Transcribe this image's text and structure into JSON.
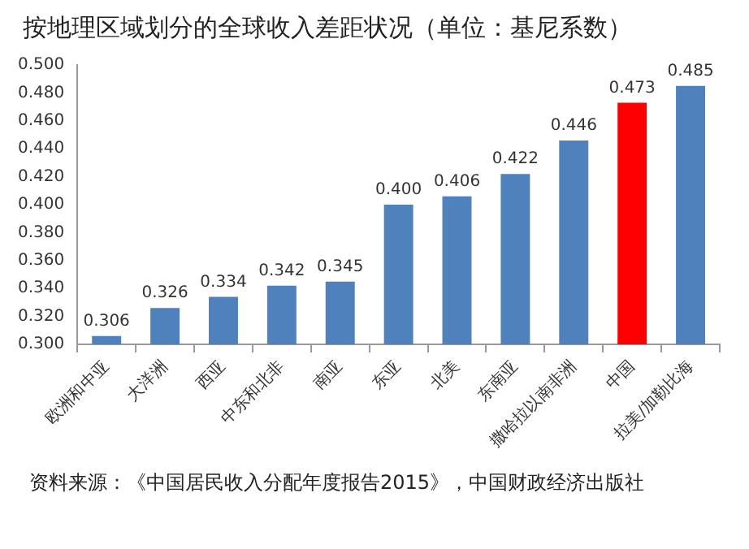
{
  "chart_data": {
    "type": "bar",
    "title": "按地理区域划分的全球收入差距状况（单位：基尼系数）",
    "categories": [
      "欧洲和中亚",
      "大洋洲",
      "西亚",
      "中东和北非",
      "南亚",
      "东亚",
      "北美",
      "东南亚",
      "撒哈拉以南非洲",
      "中国",
      "拉美/加勒比海"
    ],
    "values": [
      0.306,
      0.326,
      0.334,
      0.342,
      0.345,
      0.4,
      0.406,
      0.422,
      0.446,
      0.473,
      0.485
    ],
    "colors": [
      "#4f81bd",
      "#4f81bd",
      "#4f81bd",
      "#4f81bd",
      "#4f81bd",
      "#4f81bd",
      "#4f81bd",
      "#4f81bd",
      "#4f81bd",
      "#ff0000",
      "#4f81bd"
    ],
    "value_labels": [
      "0.306",
      "0.326",
      "0.334",
      "0.342",
      "0.345",
      "0.400",
      "0.406",
      "0.422",
      "0.446",
      "0.473",
      "0.485"
    ],
    "ylim": [
      0.3,
      0.5
    ],
    "yticks": [
      {
        "value": 0.3,
        "label": "0.300"
      },
      {
        "value": 0.32,
        "label": "0.320"
      },
      {
        "value": 0.34,
        "label": "0.340"
      },
      {
        "value": 0.36,
        "label": "0.360"
      },
      {
        "value": 0.38,
        "label": "0.380"
      },
      {
        "value": 0.4,
        "label": "0.400"
      },
      {
        "value": 0.42,
        "label": "0.420"
      },
      {
        "value": 0.44,
        "label": "0.440"
      },
      {
        "value": 0.46,
        "label": "0.460"
      },
      {
        "value": 0.48,
        "label": "0.480"
      },
      {
        "value": 0.5,
        "label": "0.500"
      }
    ],
    "grid": false,
    "legend": false,
    "annotations": [
      "资料来源：《中国居民收入分配年度报告2015》，中国财政经济出版社"
    ]
  }
}
